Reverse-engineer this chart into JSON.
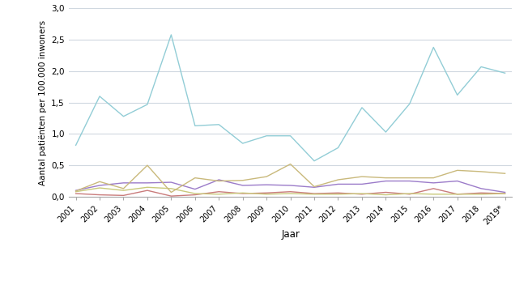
{
  "years": [
    2001,
    2002,
    2003,
    2004,
    2005,
    2006,
    2007,
    2008,
    2009,
    2010,
    2011,
    2012,
    2013,
    2014,
    2015,
    2016,
    2017,
    2018,
    2019
  ],
  "year_labels": [
    "2001",
    "2002",
    "2003",
    "2004",
    "2005",
    "2006",
    "2007",
    "2008",
    "2009",
    "2010",
    "2011",
    "2012",
    "2013",
    "2014",
    "2015",
    "2016",
    "2017",
    "2018",
    "2019*"
  ],
  "series": {
    "<5 yrs": [
      0.82,
      1.6,
      1.28,
      1.47,
      2.58,
      1.13,
      1.15,
      0.85,
      0.97,
      0.97,
      0.57,
      0.78,
      1.42,
      1.03,
      1.48,
      2.38,
      1.62,
      2.07,
      1.97
    ],
    "5-19 yrs": [
      0.05,
      0.03,
      0.02,
      0.1,
      0.01,
      0.03,
      0.08,
      0.05,
      0.06,
      0.08,
      0.05,
      0.06,
      0.04,
      0.07,
      0.04,
      0.13,
      0.04,
      0.06,
      0.05
    ],
    "20-39 yrs": [
      0.08,
      0.14,
      0.1,
      0.15,
      0.13,
      0.05,
      0.04,
      0.06,
      0.04,
      0.05,
      0.04,
      0.04,
      0.05,
      0.03,
      0.05,
      0.04,
      0.04,
      0.04,
      0.05
    ],
    "40-64 yrs": [
      0.1,
      0.18,
      0.22,
      0.22,
      0.23,
      0.12,
      0.27,
      0.18,
      0.19,
      0.18,
      0.15,
      0.2,
      0.2,
      0.25,
      0.25,
      0.22,
      0.25,
      0.13,
      0.07
    ],
    "65+ yrs": [
      0.09,
      0.24,
      0.13,
      0.5,
      0.07,
      0.3,
      0.25,
      0.26,
      0.32,
      0.52,
      0.16,
      0.27,
      0.32,
      0.3,
      0.3,
      0.3,
      0.42,
      0.4,
      0.37
    ]
  },
  "colors": {
    "<5 yrs": "#92cdd6",
    "5-19 yrs": "#c97b7b",
    "20-39 yrs": "#c9c97b",
    "40-64 yrs": "#9b7bc9",
    "65+ yrs": "#c9b97b"
  },
  "ylabel": "Aantal patiënten per 100.000 inwoners",
  "xlabel": "Jaar",
  "ylim": [
    0,
    3.0
  ],
  "yticks": [
    0.0,
    0.5,
    1.0,
    1.5,
    2.0,
    2.5,
    3.0
  ],
  "ytick_labels": [
    "0,0",
    "0,5",
    "1,0",
    "1,5",
    "2,0",
    "2,5",
    "3,0"
  ],
  "background_color": "#ffffff",
  "grid_color": "#d0d8e0",
  "line_width": 1.0
}
